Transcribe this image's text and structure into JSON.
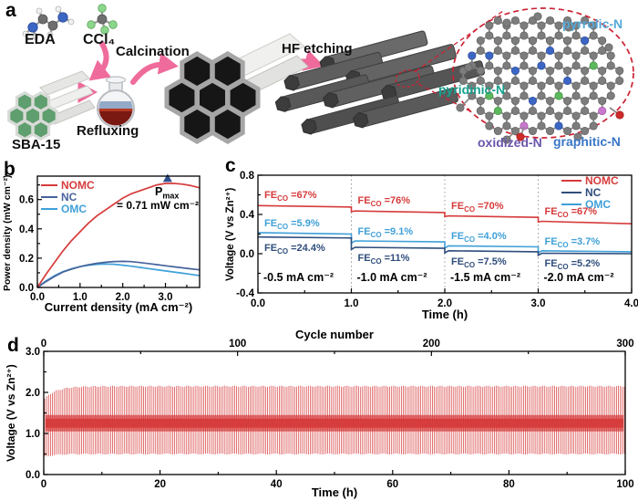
{
  "figure": {
    "panel_labels": {
      "a": "a",
      "b": "b",
      "c": "c",
      "d": "d"
    }
  },
  "panel_a": {
    "reagents": {
      "eda": "EDA",
      "ccl4": "CCl₄",
      "sba15": "SBA-15"
    },
    "steps": {
      "refluxing": "Refluxing",
      "calcination": "Calcination",
      "hf_etching": "HF etching"
    },
    "nitrogen_labels": {
      "pyrrolic": "pyrrolic-N",
      "pyridinic": "pyridinic-N",
      "oxidized": "oxidized-N",
      "graphitic": "graphitic-N"
    },
    "colors": {
      "pyrrolic_label": "#54a8da",
      "pyridinic_label": "#17a08e",
      "oxidized_label": "#6a55ab",
      "graphitic_label": "#3a76c8",
      "arrow_pink": "#ee6b9b",
      "dashed_red": "#cc2233",
      "carbon_atom": "#7d7d7d",
      "nitrogen_atom": "#3b66c4",
      "pyridinic_atom": "#5cb85c",
      "oxidized_atom": "#c977cf",
      "oxygen_atom": "#cf2a2a",
      "chlorine_atom": "#8bd68b",
      "hydrogen_atom": "#f0f0f0"
    }
  },
  "panel_b": {
    "xlabel": "Current density (mA cm⁻²)",
    "ylabel": "Power density (mW cm⁻²)",
    "legend": [
      {
        "name": "NOMC",
        "color": "#d63b3b"
      },
      {
        "name": "NC",
        "color": "#46639c"
      },
      {
        "name": "OMC",
        "color": "#3fa0d8"
      }
    ],
    "pmax": {
      "symbol": "P",
      "sub": "max",
      "value": "= 0.71 mW cm⁻²"
    }
  },
  "panel_c": {
    "xlabel": "Time (h)",
    "ylabel": "Voltage (V vs Zn²⁺)",
    "fe_prefix": "FE",
    "fe_sub": "CO",
    "legend": [
      {
        "name": "NOMC",
        "color": "#d63b3b"
      },
      {
        "name": "NC",
        "color": "#2f4d7c"
      },
      {
        "name": "OMC",
        "color": "#3fa0d8"
      }
    ]
  },
  "panel_d": {
    "xlabel": "Time (h)",
    "top_xlabel": "Cycle number",
    "ylabel": "Voltage (V vs Zn²⁺)",
    "color": "#d63b3b"
  },
  "chart_data": [
    {
      "panel": "b",
      "type": "line",
      "xlabel": "Current density (mA cm⁻²)",
      "ylabel": "Power density (mW cm⁻²)",
      "xlim": [
        0,
        3.8
      ],
      "ylim": [
        0,
        0.76
      ],
      "xticks": [
        0,
        1,
        2,
        3
      ],
      "xtick_labels": [
        "0.0",
        "1.0",
        "2.0",
        "3.0"
      ],
      "yticks": [
        0,
        0.2,
        0.4,
        0.6
      ],
      "ytick_labels": [
        "0.0",
        "0.2",
        "0.4",
        "0.6"
      ],
      "x": [
        0,
        0.2,
        0.4,
        0.6,
        0.8,
        1.0,
        1.2,
        1.4,
        1.6,
        1.8,
        2.0,
        2.2,
        2.4,
        2.6,
        2.8,
        3.0,
        3.2,
        3.4,
        3.6,
        3.8
      ],
      "series": [
        {
          "name": "NOMC",
          "color": "#d63b3b",
          "values": [
            0,
            0.09,
            0.17,
            0.25,
            0.32,
            0.38,
            0.44,
            0.49,
            0.53,
            0.57,
            0.61,
            0.64,
            0.66,
            0.68,
            0.7,
            0.71,
            0.71,
            0.705,
            0.695,
            0.68
          ]
        },
        {
          "name": "NC",
          "color": "#46639c",
          "values": [
            0,
            0.04,
            0.075,
            0.105,
            0.125,
            0.142,
            0.155,
            0.165,
            0.172,
            0.177,
            0.178,
            0.176,
            0.17,
            0.163,
            0.156,
            0.148,
            0.141,
            0.134,
            0.127,
            0.12
          ]
        },
        {
          "name": "OMC",
          "color": "#3fa0d8",
          "values": [
            0,
            0.045,
            0.08,
            0.108,
            0.128,
            0.142,
            0.152,
            0.158,
            0.16,
            0.158,
            0.152,
            0.145,
            0.137,
            0.129,
            0.121,
            0.113,
            0.105,
            0.097,
            0.089,
            0.081
          ]
        }
      ],
      "pmax_marker": {
        "x": 3.05,
        "y": 0.745,
        "label": "Pmax = 0.71 mW cm⁻²"
      }
    },
    {
      "panel": "c",
      "type": "line",
      "xlabel": "Time (h)",
      "ylabel": "Voltage (V vs Zn²⁺)",
      "xlim": [
        0,
        4
      ],
      "ylim": [
        -0.4,
        0.8
      ],
      "xticks": [
        0,
        1,
        2,
        3,
        4
      ],
      "xtick_labels": [
        "0.0",
        "1.0",
        "2.0",
        "3.0",
        "4.0"
      ],
      "yticks": [
        -0.4,
        0,
        0.4,
        0.8
      ],
      "ytick_labels": [
        "-0.4",
        "0.0",
        "0.4",
        "0.8"
      ],
      "gridlines_x": [
        1,
        2,
        3
      ],
      "segments": [
        {
          "label": "-0.5 mA cm⁻²",
          "t": [
            0,
            1
          ],
          "NOMC": [
            0.49,
            0.475
          ],
          "NC": [
            0.17,
            0.16
          ],
          "OMC": [
            0.215,
            0.2
          ],
          "fe": {
            "NOMC": "67%",
            "NC": "24.4%",
            "OMC": "5.9%"
          }
        },
        {
          "label": "-1.0 mA cm⁻²",
          "t": [
            1,
            2
          ],
          "NOMC": [
            0.435,
            0.42
          ],
          "NC": [
            0.065,
            0.055
          ],
          "OMC": [
            0.13,
            0.12
          ],
          "fe": {
            "NOMC": "76%",
            "NC": "11%",
            "OMC": "9.1%"
          }
        },
        {
          "label": "-1.5 mA cm⁻²",
          "t": [
            2,
            3
          ],
          "NOMC": [
            0.385,
            0.37
          ],
          "NC": [
            0.03,
            0.02
          ],
          "OMC": [
            0.08,
            0.07
          ],
          "fe": {
            "NOMC": "70%",
            "NC": "7.5%",
            "OMC": "4.0%"
          }
        },
        {
          "label": "-2.0 mA cm⁻²",
          "t": [
            3,
            4
          ],
          "NOMC": [
            0.33,
            0.305
          ],
          "NC": [
            0.005,
            0.0
          ],
          "OMC": [
            0.03,
            0.02
          ],
          "fe": {
            "NOMC": "67%",
            "NC": "5.2%",
            "OMC": "3.7%"
          }
        }
      ]
    },
    {
      "panel": "d",
      "type": "line",
      "xlabel": "Time (h)",
      "top_xlabel": "Cycle number",
      "ylabel": "Voltage (V vs Zn²⁺)",
      "xlim": [
        0,
        100
      ],
      "top_xlim": [
        0,
        300
      ],
      "ylim": [
        0,
        3
      ],
      "xticks": [
        0,
        20,
        40,
        60,
        80,
        100
      ],
      "xtick_labels": [
        "0",
        "20",
        "40",
        "60",
        "80",
        "100"
      ],
      "top_xticks": [
        0,
        100,
        200,
        300
      ],
      "top_xtick_labels": [
        "0",
        "100",
        "200",
        "300"
      ],
      "yticks": [
        0,
        1,
        2,
        3
      ],
      "ytick_labels": [
        "0.0",
        "1.0",
        "2.0",
        "3.0"
      ],
      "cycling": {
        "n_cycles": 300,
        "duration_h": 100,
        "charge_voltage": 2.15,
        "discharge_voltage": 0.5,
        "initial_charge_voltage": 1.85,
        "plateau_band": [
          1.05,
          1.45
        ]
      }
    }
  ]
}
